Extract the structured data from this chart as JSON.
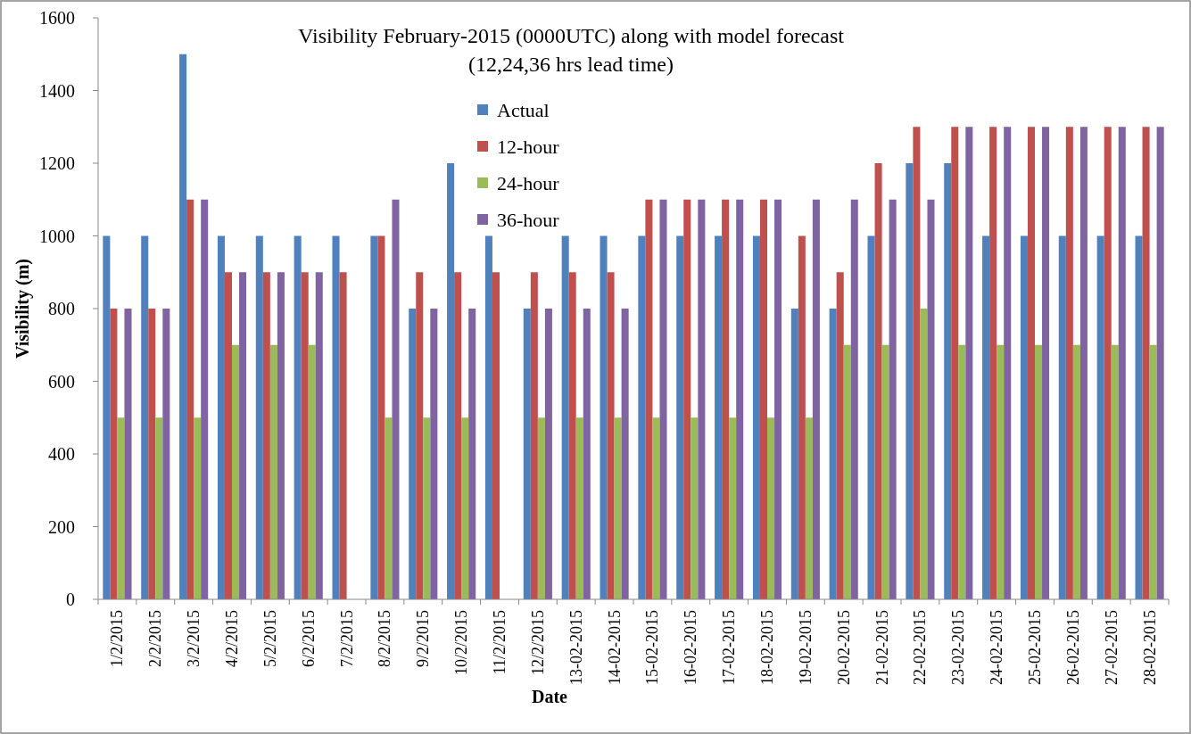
{
  "chart_data": {
    "type": "bar",
    "title": "Visibility  February-2015 (0000UTC)  along with model forecast",
    "subtitle": "(12,24,36 hrs lead time)",
    "xlabel": "Date",
    "ylabel": "Visibility (m)",
    "categories": [
      "1/2/2015",
      "2/2/2015",
      "3/2/2015",
      "4/2/2015",
      "5/2/2015",
      "6/2/2015",
      "7/2/2015",
      "8/2/2015",
      "9/2/2015",
      "10/2/2015",
      "11/2/2015",
      "12/2/2015",
      "13-02-2015",
      "14-02-2015",
      "15-02-2015",
      "16-02-2015",
      "17-02-2015",
      "18-02-2015",
      "19-02-2015",
      "20-02-2015",
      "21-02-2015",
      "22-02-2015",
      "23-02-2015",
      "24-02-2015",
      "25-02-2015",
      "26-02-2015",
      "27-02-2015",
      "28-02-2015"
    ],
    "series": [
      {
        "name": "Actual",
        "color": "#4f81bd",
        "values": [
          1000,
          1000,
          1500,
          1000,
          1000,
          1000,
          1000,
          1000,
          800,
          1200,
          1000,
          800,
          1000,
          1000,
          1000,
          1000,
          1000,
          1000,
          800,
          800,
          1000,
          1200,
          1200,
          1000,
          1000,
          1000,
          1000,
          1000
        ]
      },
      {
        "name": "12-hour",
        "color": "#c0504d",
        "values": [
          800,
          800,
          1100,
          900,
          900,
          900,
          900,
          1000,
          900,
          900,
          900,
          900,
          900,
          900,
          1100,
          1100,
          1100,
          1100,
          1000,
          900,
          1200,
          1300,
          1300,
          1300,
          1300,
          1300,
          1300,
          1300
        ]
      },
      {
        "name": "24-hour",
        "color": "#9bbb59",
        "values": [
          500,
          500,
          500,
          700,
          700,
          700,
          null,
          500,
          500,
          500,
          null,
          500,
          500,
          500,
          500,
          500,
          500,
          500,
          500,
          700,
          700,
          800,
          700,
          700,
          700,
          700,
          700,
          700
        ]
      },
      {
        "name": "36-hour",
        "color": "#8064a2",
        "values": [
          800,
          800,
          1100,
          900,
          900,
          900,
          null,
          1100,
          800,
          800,
          null,
          800,
          800,
          800,
          1100,
          1100,
          1100,
          1100,
          1100,
          1100,
          1100,
          1100,
          1300,
          1300,
          1300,
          1300,
          1300,
          1300
        ]
      }
    ],
    "ylim": [
      0,
      1600
    ],
    "yticks": [
      0,
      200,
      400,
      600,
      800,
      1000,
      1200,
      1400,
      1600
    ],
    "grid": false,
    "legend": "top"
  }
}
